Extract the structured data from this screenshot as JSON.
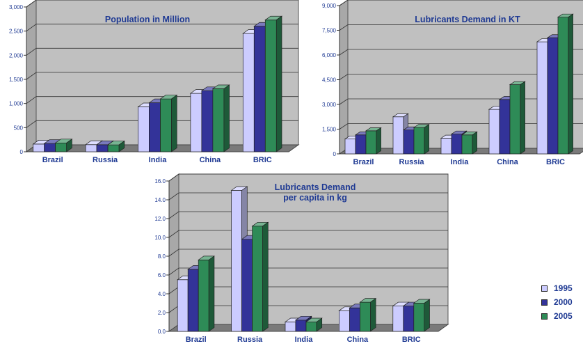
{
  "colors": {
    "s1995": "#ccccff",
    "s2000": "#333399",
    "s2005": "#2e8b57",
    "title": "#1f3a93",
    "axis_text": "#1f3a93",
    "plot_bg": "#c0c0c0"
  },
  "legend": [
    {
      "label": "1995",
      "color": "#ccccff"
    },
    {
      "label": "2000",
      "color": "#333399"
    },
    {
      "label": "2005",
      "color": "#2e8b57"
    }
  ],
  "chart_data": [
    {
      "type": "bar",
      "title": "Population in Million",
      "categories": [
        "Brazil",
        "Russia",
        "India",
        "China",
        "BRIC"
      ],
      "series": [
        {
          "name": "1995",
          "values": [
            160,
            148,
            930,
            1210,
            2450
          ]
        },
        {
          "name": "2000",
          "values": [
            172,
            146,
            1015,
            1265,
            2600
          ]
        },
        {
          "name": "2005",
          "values": [
            183,
            143,
            1095,
            1305,
            2730
          ]
        }
      ],
      "ylim": [
        0,
        3000
      ],
      "yticks": [
        "0",
        "500",
        "1,000",
        "1,500",
        "2,000",
        "2,500",
        "3,000"
      ],
      "ytick_values": [
        0,
        500,
        1000,
        1500,
        2000,
        2500,
        3000
      ],
      "grid": true
    },
    {
      "type": "bar",
      "title": "Lubricants Demand in KT",
      "categories": [
        "Brazil",
        "Russia",
        "India",
        "China",
        "BRIC"
      ],
      "series": [
        {
          "name": "1995",
          "values": [
            900,
            2250,
            950,
            2700,
            6800
          ]
        },
        {
          "name": "2000",
          "values": [
            1150,
            1450,
            1200,
            3300,
            7050
          ]
        },
        {
          "name": "2005",
          "values": [
            1400,
            1600,
            1150,
            4200,
            8300
          ]
        }
      ],
      "ylim": [
        0,
        9000
      ],
      "yticks": [
        "0",
        "1,500",
        "3,000",
        "4,500",
        "6,000",
        "7,500",
        "9,000"
      ],
      "ytick_values": [
        0,
        1500,
        3000,
        4500,
        6000,
        7500,
        9000
      ],
      "grid": true
    },
    {
      "type": "bar",
      "title": "Lubricants Demand\nper capita in kg",
      "categories": [
        "Brazil",
        "Russia",
        "India",
        "China",
        "BRIC"
      ],
      "series": [
        {
          "name": "1995",
          "values": [
            5.5,
            15.0,
            1.0,
            2.2,
            2.7
          ]
        },
        {
          "name": "2000",
          "values": [
            6.6,
            9.8,
            1.2,
            2.5,
            2.7
          ]
        },
        {
          "name": "2005",
          "values": [
            7.6,
            11.2,
            1.0,
            3.1,
            3.0
          ]
        }
      ],
      "ylim": [
        0,
        16
      ],
      "yticks": [
        "0.0",
        "2.0",
        "4.0",
        "6.0",
        "8.0",
        "10.0",
        "12.0",
        "14.0",
        "16.0"
      ],
      "ytick_values": [
        0,
        2,
        4,
        6,
        8,
        10,
        12,
        14,
        16
      ],
      "grid": true,
      "legend_position": "right"
    }
  ]
}
